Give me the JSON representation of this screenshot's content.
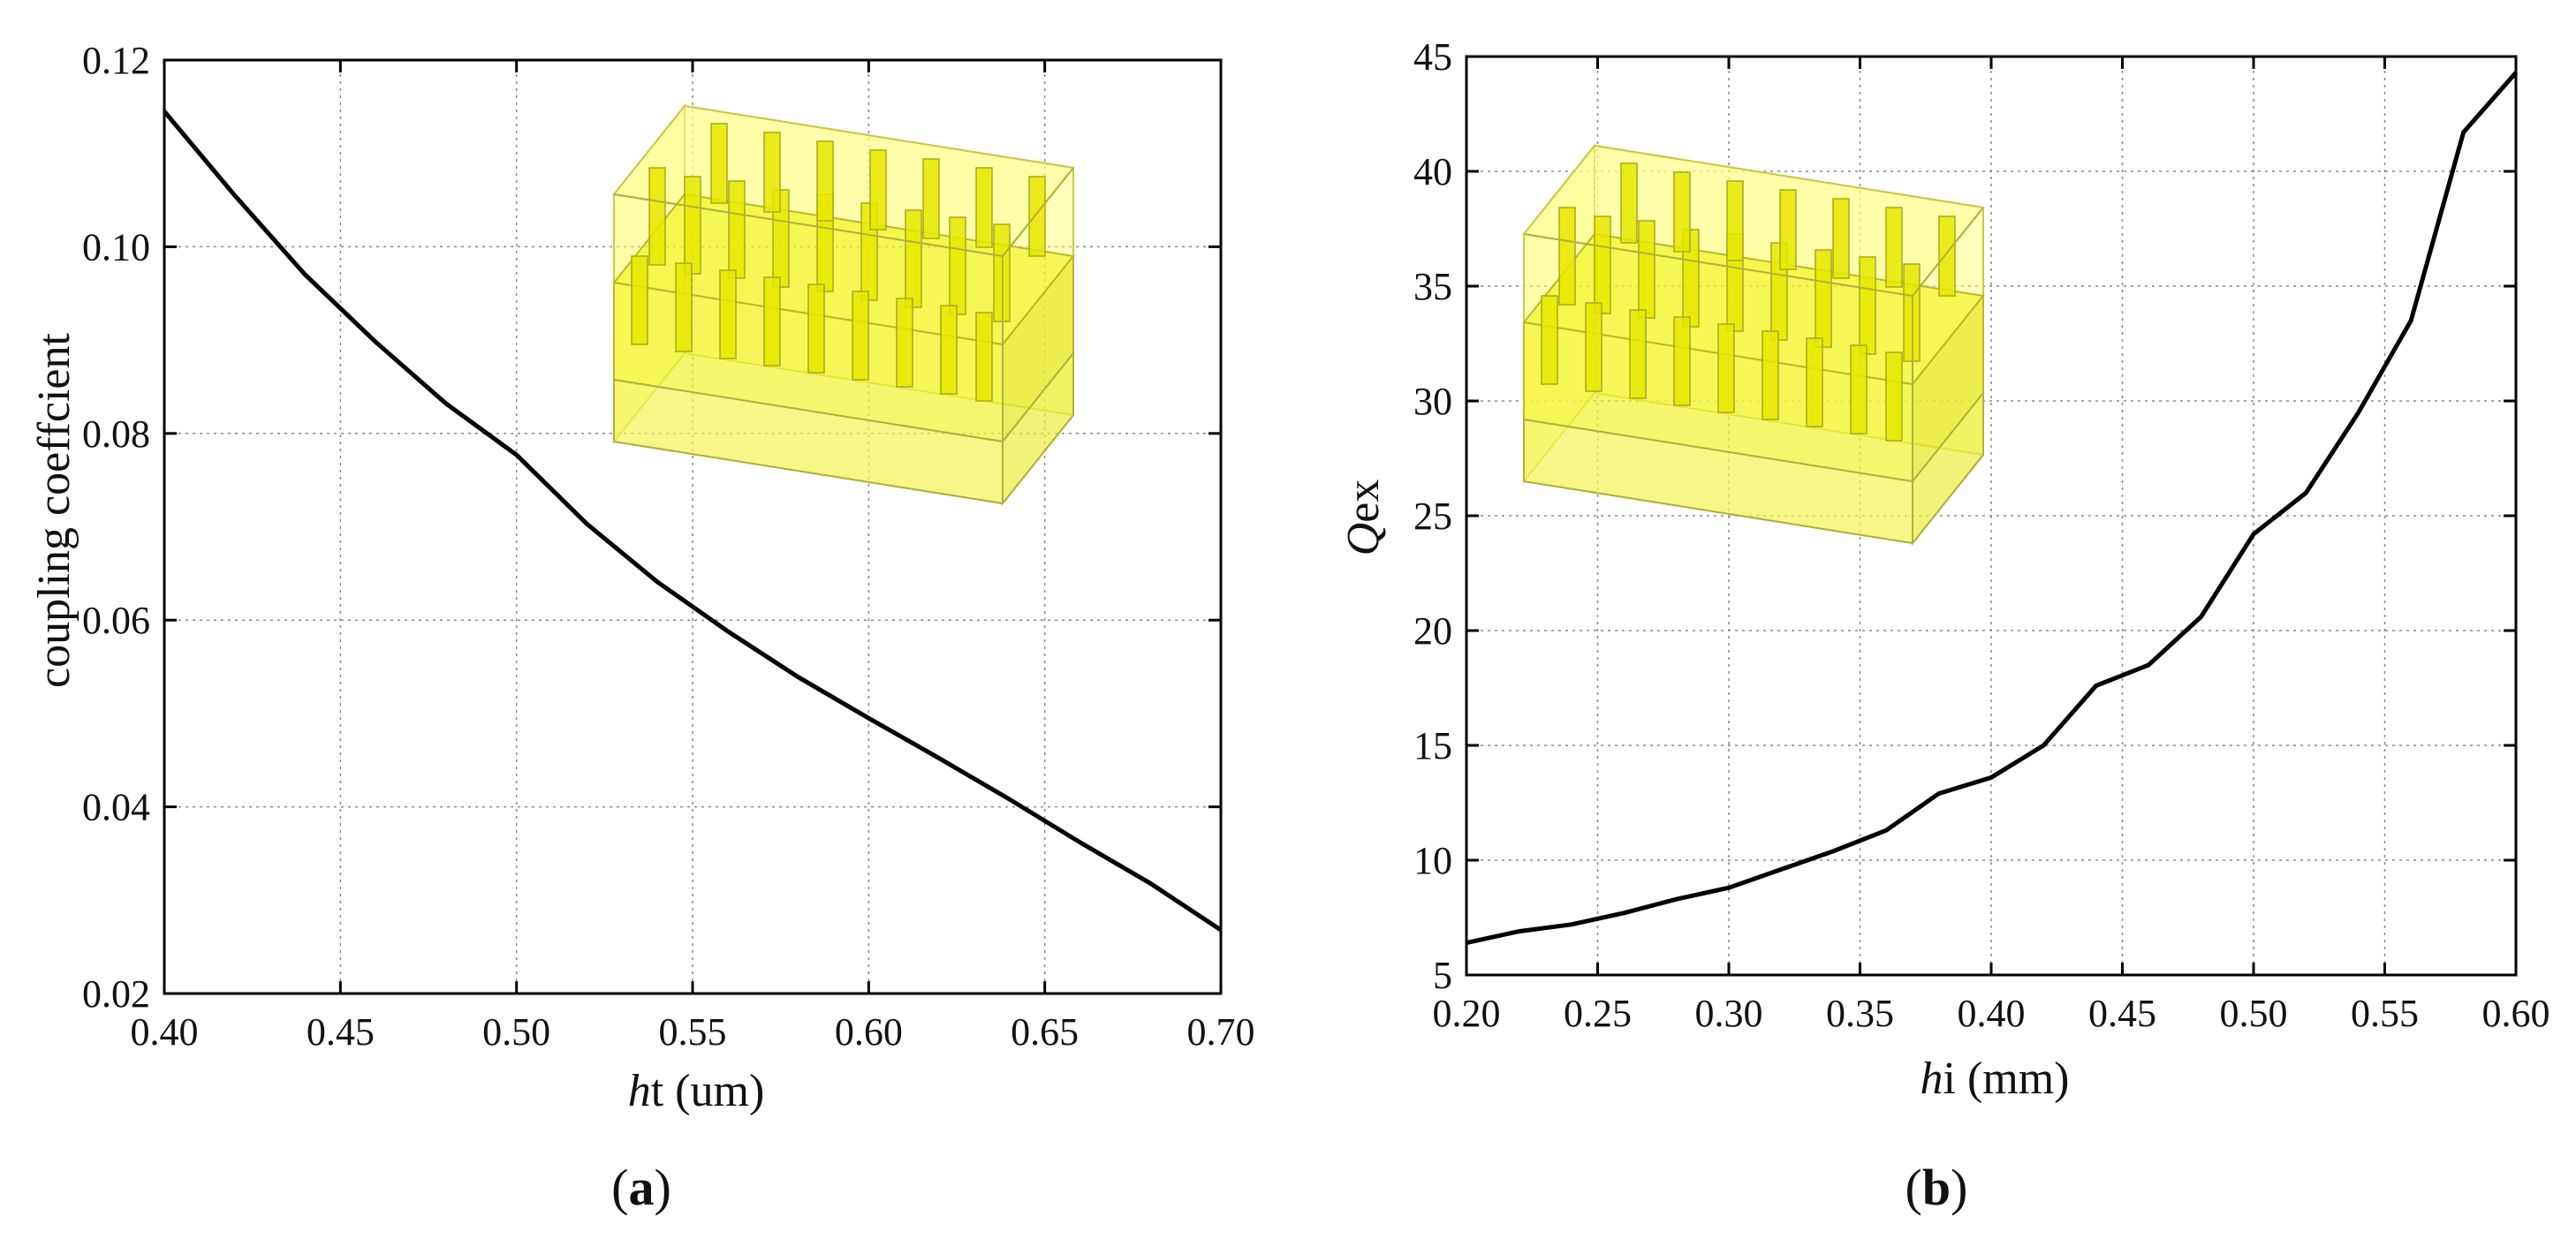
{
  "chart_data": [
    {
      "type": "line",
      "panel_label": "a",
      "title": "",
      "xlabel_italic": "h",
      "xlabel_rest": "t (um)",
      "ylabel": "coupling coeffcient",
      "xlim": [
        0.4,
        0.7
      ],
      "ylim": [
        0.02,
        0.12
      ],
      "xticks": [
        "0.40",
        "0.45",
        "0.50",
        "0.55",
        "0.60",
        "0.65",
        "0.70"
      ],
      "yticks": [
        "0.02",
        "0.04",
        "0.06",
        "0.08",
        "0.10",
        "0.12"
      ],
      "grid": true,
      "x": [
        0.4,
        0.42,
        0.44,
        0.46,
        0.48,
        0.5,
        0.52,
        0.54,
        0.56,
        0.58,
        0.6,
        0.62,
        0.64,
        0.66,
        0.68,
        0.7
      ],
      "y": [
        0.1145,
        0.1055,
        0.097,
        0.0898,
        0.0832,
        0.0777,
        0.0703,
        0.0641,
        0.0588,
        0.0539,
        0.0495,
        0.0452,
        0.0408,
        0.0362,
        0.0318,
        0.0268
      ],
      "inset": "3D model of pin resonator structure"
    },
    {
      "type": "line",
      "panel_label": "b",
      "title": "",
      "xlabel_italic": "h",
      "xlabel_rest": "i (mm)",
      "ylabel_italic": "Q",
      "ylabel_rest": "ex",
      "xlim": [
        0.2,
        0.6
      ],
      "ylim": [
        5,
        45
      ],
      "xticks": [
        "0.20",
        "0.25",
        "0.30",
        "0.35",
        "0.40",
        "0.45",
        "0.50",
        "0.55",
        "0.60"
      ],
      "yticks": [
        "5",
        "10",
        "15",
        "20",
        "25",
        "30",
        "35",
        "40",
        "45"
      ],
      "grid": true,
      "x": [
        0.2,
        0.22,
        0.24,
        0.26,
        0.28,
        0.3,
        0.32,
        0.34,
        0.36,
        0.38,
        0.4,
        0.42,
        0.44,
        0.46,
        0.48,
        0.5,
        0.52,
        0.54,
        0.56,
        0.58,
        0.6
      ],
      "y": [
        6.4,
        6.9,
        7.2,
        7.7,
        8.3,
        8.8,
        9.6,
        10.4,
        11.3,
        12.9,
        13.6,
        15.0,
        17.6,
        18.5,
        20.6,
        24.2,
        26.0,
        29.5,
        33.5,
        41.7,
        44.3
      ],
      "inset": "3D model of pin resonator structure"
    }
  ]
}
